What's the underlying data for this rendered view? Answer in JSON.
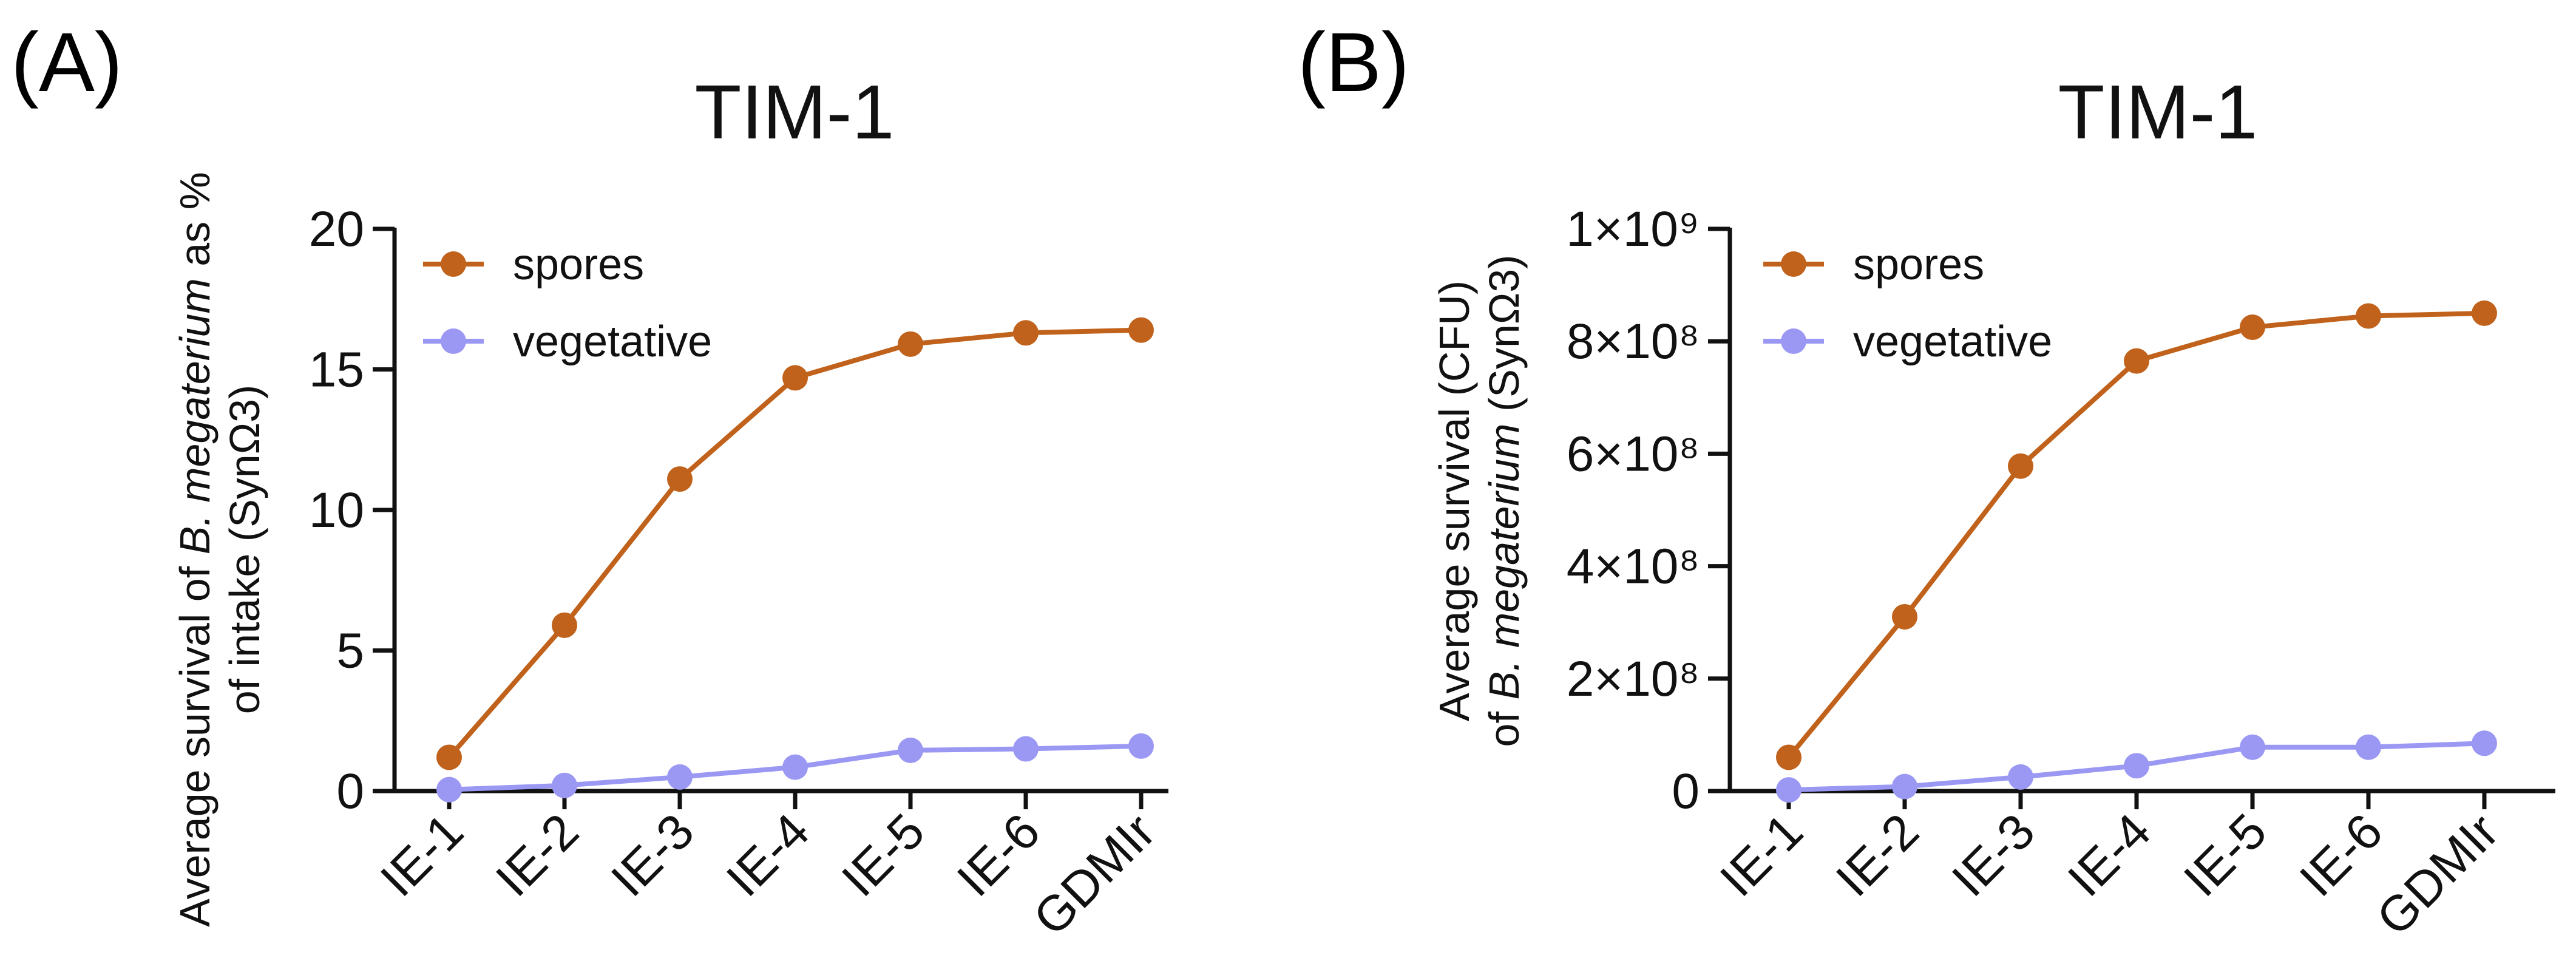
{
  "chart_data": [
    {
      "panel": "(A)",
      "type": "line",
      "title": "TIM-1",
      "xlabel": "",
      "ylabel_line1_parts": [
        "Average survival of ",
        "B. megaterium",
        " as %"
      ],
      "ylabel_line2": "of intake (SynΩ3)",
      "categories": [
        "IE-1",
        "IE-2",
        "IE-3",
        "IE-4",
        "IE-5",
        "IE-6",
        "GDMIr"
      ],
      "ylim": [
        0,
        20
      ],
      "yticks": [
        0,
        5,
        10,
        15,
        20
      ],
      "ytick_labels": [
        "0",
        "5",
        "10",
        "15",
        "20"
      ],
      "legend_position": "top-left",
      "series": [
        {
          "name": "spores",
          "color": "#C0621B",
          "values": [
            1.2,
            5.9,
            11.1,
            14.7,
            15.9,
            16.3,
            16.4
          ]
        },
        {
          "name": "vegetative",
          "color": "#9B98F4",
          "values": [
            0.05,
            0.2,
            0.5,
            0.85,
            1.45,
            1.5,
            1.6
          ]
        }
      ]
    },
    {
      "panel": "(B)",
      "type": "line",
      "title": "TIM-1",
      "xlabel": "",
      "ylabel_line1": "Average survival (CFU)",
      "ylabel_line2_parts": [
        "of ",
        "B. megaterium",
        " (SynΩ3)"
      ],
      "categories": [
        "IE-1",
        "IE-2",
        "IE-3",
        "IE-4",
        "IE-5",
        "IE-6",
        "GDMIr"
      ],
      "ylim": [
        0,
        1000000000
      ],
      "yticks": [
        0,
        200000000,
        400000000,
        600000000,
        800000000,
        1000000000
      ],
      "ytick_labels": [
        "0",
        "2×10⁸",
        "4×10⁸",
        "6×10⁸",
        "8×10⁸",
        "1×10⁹"
      ],
      "legend_position": "top-left",
      "series": [
        {
          "name": "spores",
          "color": "#C0621B",
          "values": [
            60000000,
            310000000,
            578000000,
            765000000,
            825000000,
            845000000,
            850000000
          ]
        },
        {
          "name": "vegetative",
          "color": "#9B98F4",
          "values": [
            2000000,
            8000000,
            25000000,
            45000000,
            78000000,
            78000000,
            85000000
          ]
        }
      ]
    }
  ]
}
